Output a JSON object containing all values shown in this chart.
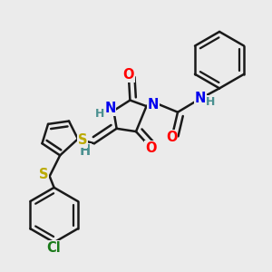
{
  "background_color": "#ebebeb",
  "bond_color": "#1a1a1a",
  "bond_width": 1.8,
  "atom_colors": {
    "O": "#ff0000",
    "N": "#0000ee",
    "S": "#bbaa00",
    "Cl": "#1a7a1a",
    "H": "#4a9090",
    "C": "#1a1a1a"
  },
  "font_size": 10.5,
  "font_size_small": 9.0
}
